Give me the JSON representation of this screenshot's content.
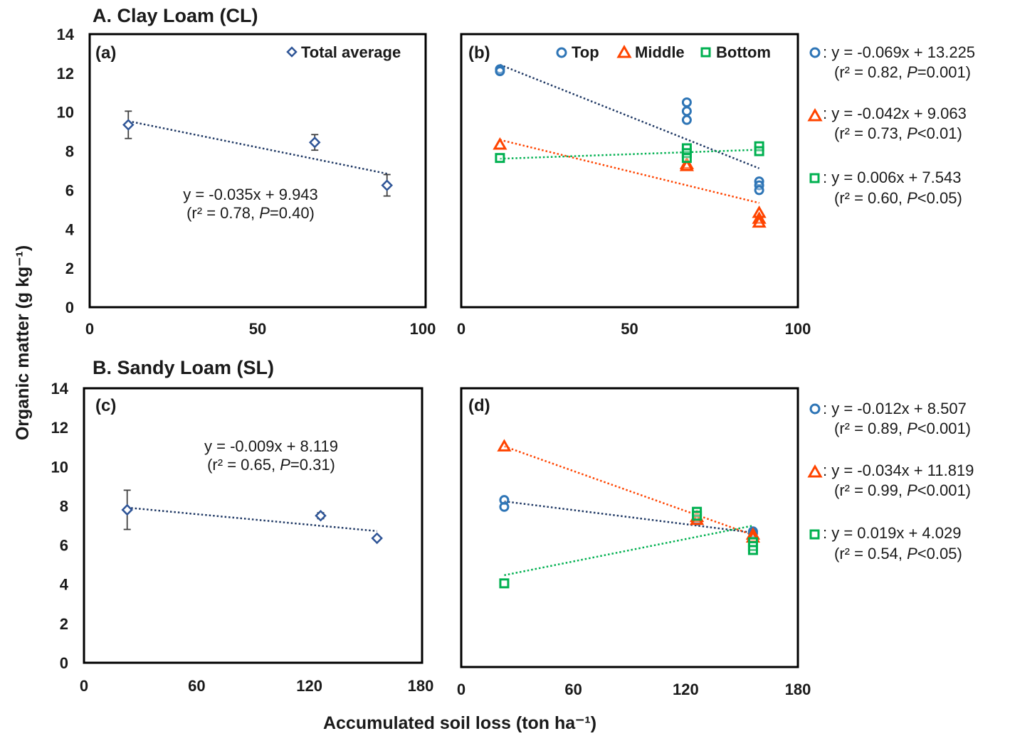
{
  "titles": {
    "section_a": "A. Clay Loam (CL)",
    "section_b": "B. Sandy Loam (SL)"
  },
  "axes": {
    "ylabel": "Organic matter (g kg⁻¹)",
    "xlabel": "Accumulated soil loss (ton ha⁻¹)"
  },
  "colors": {
    "total": "#2f5597",
    "top": "#2e75b6",
    "middle": "#ff4400",
    "bottom": "#00b050",
    "trend_top": "#1f3864",
    "trend_middle": "#ff4400",
    "trend_bottom": "#00b050",
    "error_bar": "#404040",
    "frame": "#000000"
  },
  "panels": {
    "a": {
      "label": "(a)",
      "legend": [
        {
          "marker": "diamond",
          "label": "Total average"
        }
      ],
      "equation": "y = -0.035x + 9.943",
      "stats": {
        "open": "(r² = 0.78, ",
        "p": "P",
        "close": "=0.40)"
      }
    },
    "b": {
      "label": "(b)",
      "legend": [
        {
          "marker": "circle",
          "label": "Top"
        },
        {
          "marker": "triangle",
          "label": "Middle"
        },
        {
          "marker": "square",
          "label": "Bottom"
        }
      ],
      "equations": [
        {
          "marker": "circle",
          "eq": ": y = -0.069x + 13.225",
          "open": "(r² = 0.82, ",
          "p": "P",
          "close": "=0.001)"
        },
        {
          "marker": "triangle",
          "eq": ": y = -0.042x + 9.063",
          "open": "(r² = 0.73, ",
          "p": "P",
          "close": "<0.01)"
        },
        {
          "marker": "square",
          "eq": ": y = 0.006x + 7.543",
          "open": "(r² = 0.60, ",
          "p": "P",
          "close": "<0.05)"
        }
      ]
    },
    "c": {
      "label": "(c)",
      "equation": "y = -0.009x + 8.119",
      "stats": {
        "open": "(r² = 0.65, ",
        "p": "P",
        "close": "=0.31)"
      }
    },
    "d": {
      "label": "(d)",
      "equations": [
        {
          "marker": "circle",
          "eq": ": y = -0.012x + 8.507",
          "open": "(r² = 0.89, ",
          "p": "P",
          "close": "<0.001)"
        },
        {
          "marker": "triangle",
          "eq": ": y = -0.034x + 11.819",
          "open": "(r² = 0.99, ",
          "p": "P",
          "close": "<0.001)"
        },
        {
          "marker": "square",
          "eq": ": y = 0.019x + 4.029",
          "open": "(r² = 0.54, ",
          "p": "P",
          "close": "<0.05)"
        }
      ]
    }
  },
  "chart_data": [
    {
      "id": "a",
      "type": "scatter",
      "xlim": [
        0,
        100
      ],
      "ylim": [
        0,
        14
      ],
      "xticks": [
        0,
        50,
        100
      ],
      "yticks": [
        0,
        2,
        4,
        6,
        8,
        10,
        12,
        14
      ],
      "xlabel": "Accumulated soil loss (ton ha⁻¹)",
      "ylabel": "Organic matter (g kg⁻¹)",
      "legend_position": "top-right",
      "grid": false,
      "series": [
        {
          "name": "Total average",
          "marker": "diamond",
          "color": "#2f5597",
          "points": [
            {
              "x": 11.5,
              "y": 9.35,
              "err": 0.7
            },
            {
              "x": 67,
              "y": 8.45,
              "err": 0.4
            },
            {
              "x": 88.5,
              "y": 6.25,
              "err": 0.55
            }
          ]
        }
      ],
      "trendlines": [
        {
          "series": "Total average",
          "slope": -0.035,
          "intercept": 9.943,
          "x_range": [
            11.5,
            88.5
          ],
          "color": "#1f3864"
        }
      ]
    },
    {
      "id": "b",
      "type": "scatter",
      "xlim": [
        0,
        100
      ],
      "ylim": [
        0,
        14
      ],
      "xticks": [
        0,
        50,
        100
      ],
      "yticks": [
        0,
        2,
        4,
        6,
        8,
        10,
        12,
        14
      ],
      "legend_position": "top-right",
      "grid": false,
      "series": [
        {
          "name": "Top",
          "marker": "circle",
          "color": "#2e75b6",
          "points": [
            {
              "x": 11.5,
              "y": 12.2
            },
            {
              "x": 11.5,
              "y": 12.1
            },
            {
              "x": 67,
              "y": 10.5
            },
            {
              "x": 67,
              "y": 10.05
            },
            {
              "x": 67,
              "y": 9.6
            },
            {
              "x": 88.5,
              "y": 6.45
            },
            {
              "x": 88.5,
              "y": 6.25
            },
            {
              "x": 88.5,
              "y": 6.0
            }
          ]
        },
        {
          "name": "Middle",
          "marker": "triangle",
          "color": "#ff4400",
          "points": [
            {
              "x": 11.5,
              "y": 8.35
            },
            {
              "x": 67,
              "y": 7.35
            },
            {
              "x": 67,
              "y": 7.25
            },
            {
              "x": 88.5,
              "y": 4.85
            },
            {
              "x": 88.5,
              "y": 4.55
            },
            {
              "x": 88.5,
              "y": 4.35
            }
          ]
        },
        {
          "name": "Bottom",
          "marker": "square",
          "color": "#00b050",
          "points": [
            {
              "x": 11.5,
              "y": 7.65
            },
            {
              "x": 67,
              "y": 8.15
            },
            {
              "x": 67,
              "y": 7.9
            },
            {
              "x": 67,
              "y": 7.65
            },
            {
              "x": 88.5,
              "y": 8.25
            },
            {
              "x": 88.5,
              "y": 8.0
            }
          ]
        }
      ],
      "trendlines": [
        {
          "series": "Top",
          "slope": -0.069,
          "intercept": 13.225,
          "x_range": [
            11.5,
            88.5
          ],
          "color": "#1f3864"
        },
        {
          "series": "Middle",
          "slope": -0.042,
          "intercept": 9.063,
          "x_range": [
            11.5,
            88.5
          ],
          "color": "#ff4400"
        },
        {
          "series": "Bottom",
          "slope": 0.006,
          "intercept": 7.543,
          "x_range": [
            11.5,
            88.5
          ],
          "color": "#00b050"
        }
      ]
    },
    {
      "id": "c",
      "type": "scatter",
      "xlim": [
        0,
        180
      ],
      "ylim": [
        0,
        14
      ],
      "xticks": [
        0,
        60,
        120,
        180
      ],
      "yticks": [
        0,
        2,
        4,
        6,
        8,
        10,
        12,
        14
      ],
      "grid": false,
      "series": [
        {
          "name": "Total average",
          "marker": "diamond",
          "color": "#2f5597",
          "points": [
            {
              "x": 23,
              "y": 7.8,
              "err": 1.0
            },
            {
              "x": 126,
              "y": 7.5,
              "err": 0.15
            },
            {
              "x": 156,
              "y": 6.35,
              "err": 0.1
            }
          ]
        }
      ],
      "trendlines": [
        {
          "series": "Total average",
          "slope": -0.009,
          "intercept": 8.119,
          "x_range": [
            23,
            156
          ],
          "color": "#1f3864"
        }
      ]
    },
    {
      "id": "d",
      "type": "scatter",
      "xlim": [
        0,
        180
      ],
      "ylim": [
        0,
        14
      ],
      "xticks": [
        0,
        60,
        120,
        180
      ],
      "yticks": [
        0,
        2,
        4,
        6,
        8,
        10,
        12,
        14
      ],
      "grid": false,
      "series": [
        {
          "name": "Top",
          "marker": "circle",
          "color": "#2e75b6",
          "points": [
            {
              "x": 23,
              "y": 8.3
            },
            {
              "x": 23,
              "y": 7.95
            },
            {
              "x": 126,
              "y": 7.35
            },
            {
              "x": 126,
              "y": 7.25
            },
            {
              "x": 156,
              "y": 6.7
            },
            {
              "x": 156,
              "y": 6.6
            }
          ]
        },
        {
          "name": "Middle",
          "marker": "triangle",
          "color": "#ff4400",
          "points": [
            {
              "x": 23,
              "y": 11.05
            },
            {
              "x": 126,
              "y": 7.45
            },
            {
              "x": 126,
              "y": 7.3
            },
            {
              "x": 156,
              "y": 6.55
            },
            {
              "x": 156,
              "y": 6.4
            }
          ]
        },
        {
          "name": "Bottom",
          "marker": "square",
          "color": "#00b050",
          "points": [
            {
              "x": 23,
              "y": 4.05
            },
            {
              "x": 126,
              "y": 7.7
            },
            {
              "x": 126,
              "y": 7.5
            },
            {
              "x": 156,
              "y": 6.15
            },
            {
              "x": 156,
              "y": 5.95
            },
            {
              "x": 156,
              "y": 5.75
            }
          ]
        }
      ],
      "trendlines": [
        {
          "series": "Top",
          "slope": -0.012,
          "intercept": 8.507,
          "x_range": [
            23,
            156
          ],
          "color": "#1f3864"
        },
        {
          "series": "Middle",
          "slope": -0.034,
          "intercept": 11.819,
          "x_range": [
            23,
            156
          ],
          "color": "#ff4400"
        },
        {
          "series": "Bottom",
          "slope": 0.019,
          "intercept": 4.029,
          "x_range": [
            23,
            156
          ],
          "color": "#00b050"
        }
      ]
    }
  ]
}
